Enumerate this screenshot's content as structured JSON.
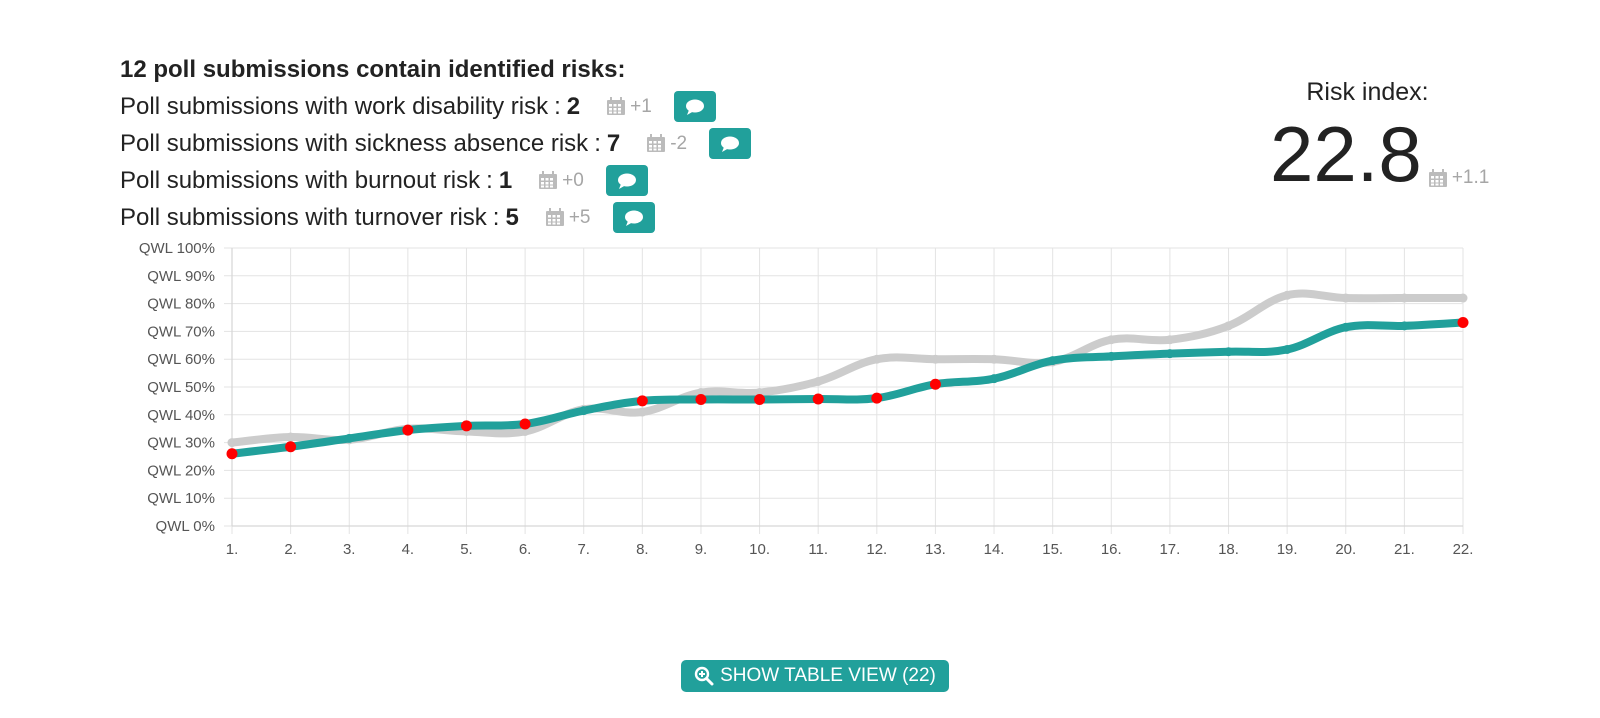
{
  "summary": {
    "title": "12 poll submissions contain identified risks:",
    "rows": [
      {
        "label": "Poll submissions with work disability risk",
        "sep": ":",
        "count": "2",
        "delta": "+1"
      },
      {
        "label": "Poll submissions with sickness absence risk",
        "sep": ":",
        "count": "7",
        "delta": "-2"
      },
      {
        "label": "Poll submissions with burnout risk",
        "sep": ":",
        "count": "1",
        "delta": "+0"
      },
      {
        "label": "Poll submissions with turnover risk",
        "sep": ":",
        "count": "5",
        "delta": "+5"
      }
    ]
  },
  "risk_index": {
    "label": "Risk index:",
    "value": "22.8",
    "delta": "+1.1"
  },
  "table_button": {
    "label": "SHOW TABLE VIEW (22)"
  },
  "colors": {
    "accent": "#21a09b",
    "comparison_line": "#cccccc",
    "risk_point": "#ff0000",
    "grid": "#e3e3e3"
  },
  "icons": {
    "delta": "calendar-icon",
    "comment": "comment-icon",
    "table_button": "zoom-in-icon"
  },
  "chart_data": {
    "type": "line",
    "title": "",
    "xlabel": "",
    "ylabel": "",
    "grid": true,
    "legend": "none",
    "ylim": [
      0,
      100
    ],
    "y_ticks": [
      "QWL 0%",
      "QWL 10%",
      "QWL 20%",
      "QWL 30%",
      "QWL 40%",
      "QWL 50%",
      "QWL 60%",
      "QWL 70%",
      "QWL 80%",
      "QWL 90%",
      "QWL 100%"
    ],
    "categories": [
      "1.",
      "2.",
      "3.",
      "4.",
      "5.",
      "6.",
      "7.",
      "8.",
      "9.",
      "10.",
      "11.",
      "12.",
      "13.",
      "14.",
      "15.",
      "16.",
      "17.",
      "18.",
      "19.",
      "20.",
      "21.",
      "22."
    ],
    "series": [
      {
        "color": "#cccccc",
        "values": [
          30,
          32,
          31,
          35,
          34,
          34,
          42,
          41,
          48,
          48,
          52,
          60,
          60,
          60,
          59,
          67,
          67,
          72,
          83,
          82,
          82,
          82
        ]
      },
      {
        "color": "#21a09b",
        "values": [
          26,
          28.5,
          31.5,
          34.5,
          36,
          36.7,
          41.5,
          45,
          45.5,
          45.5,
          45.7,
          46,
          51,
          53,
          59.5,
          61,
          62,
          62.7,
          63.5,
          71.5,
          72,
          73.2
        ],
        "risk_flags": [
          true,
          true,
          false,
          true,
          true,
          true,
          false,
          true,
          true,
          true,
          true,
          true,
          true,
          false,
          false,
          false,
          false,
          false,
          false,
          false,
          false,
          true
        ]
      }
    ]
  }
}
